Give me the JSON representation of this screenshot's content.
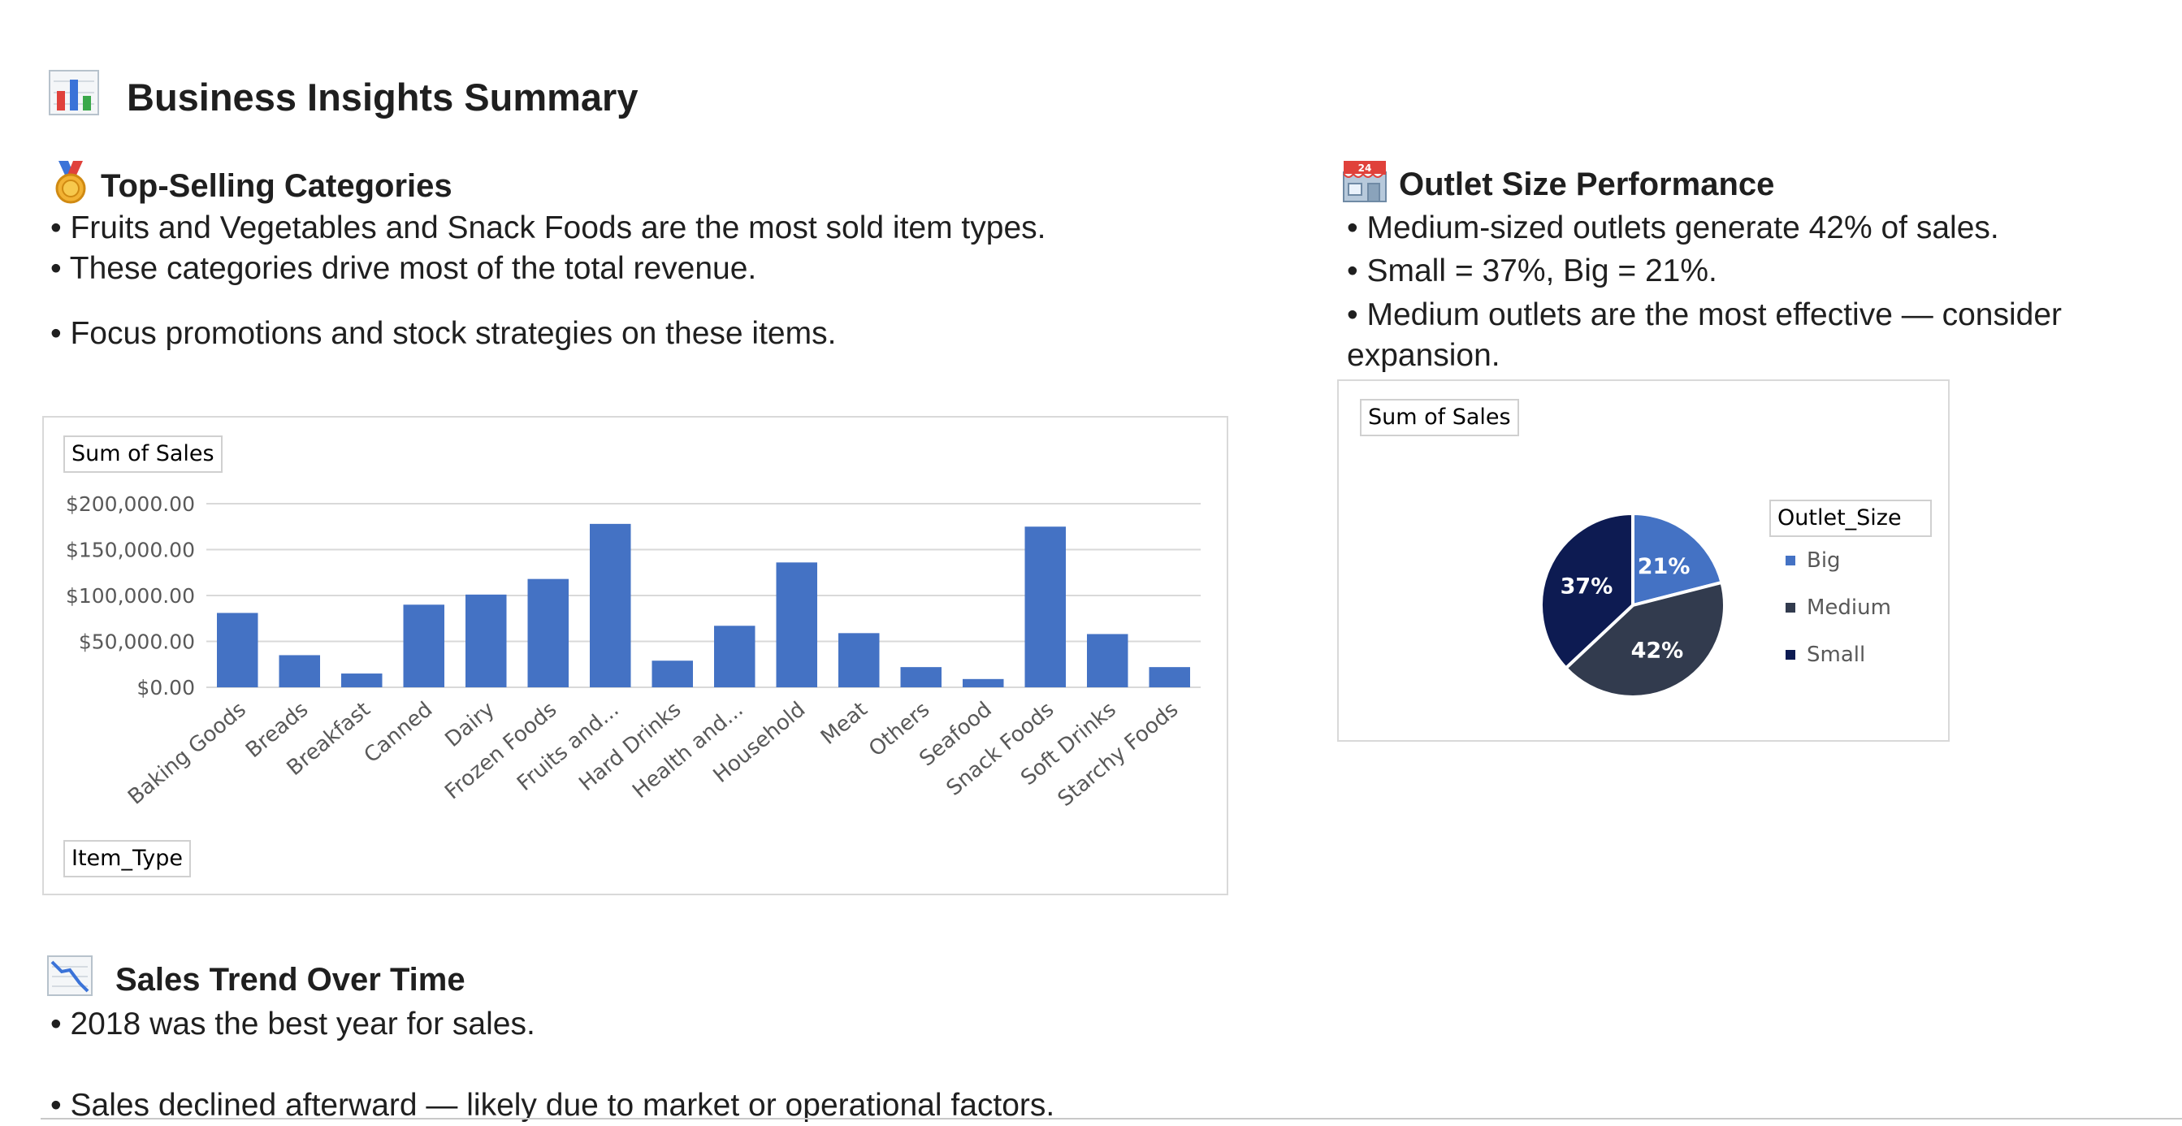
{
  "page": {
    "title": "Business Insights Summary",
    "title_icon": "bar-chart-icon"
  },
  "top_selling": {
    "heading": "Top-Selling Categories",
    "heading_icon": "medal-icon",
    "bullets": [
      "• Fruits and Vegetables and Snack Foods are the most sold item types.",
      "• These categories drive most of the total revenue.",
      "• Focus promotions and stock strategies on these items."
    ]
  },
  "outlet_size": {
    "heading": "Outlet Size Performance",
    "heading_icon": "store-icon",
    "bullets": [
      "• Medium-sized outlets generate 42% of sales.",
      "• Small = 37%, Big = 21%.",
      "• Medium outlets are the most effective — consider expansion."
    ]
  },
  "sales_trend": {
    "heading": "Sales Trend Over Time",
    "heading_icon": "chart-decreasing-icon",
    "bullets": [
      "• 2018 was the best year for sales.",
      "• Sales declined afterward — likely due to market or operational factors."
    ]
  },
  "colors": {
    "bar": "#4472c4",
    "big": "#4472c4",
    "medium": "#323b4e",
    "small": "#0d1b52",
    "grid": "#d9d9d9",
    "axis_text": "#595959"
  },
  "chart_data": [
    {
      "type": "bar",
      "value_field": "Sum of Sales",
      "axis_field": "Item_Type",
      "categories": [
        "Baking Goods",
        "Breads",
        "Breakfast",
        "Canned",
        "Dairy",
        "Frozen Foods",
        "Fruits and...",
        "Hard Drinks",
        "Health and...",
        "Household",
        "Meat",
        "Others",
        "Seafood",
        "Snack Foods",
        "Soft Drinks",
        "Starchy Foods"
      ],
      "values": [
        81000,
        35000,
        15000,
        90000,
        101000,
        118000,
        178000,
        29000,
        67000,
        136000,
        59000,
        22000,
        9000,
        175000,
        58000,
        22000
      ],
      "ylim": [
        0,
        200000
      ],
      "yticks": [
        0,
        50000,
        100000,
        150000,
        200000
      ],
      "ytick_labels": [
        "$0.00",
        "$50,000.00",
        "$100,000.00",
        "$150,000.00",
        "$200,000.00"
      ],
      "grid": true,
      "legend": "none"
    },
    {
      "type": "pie",
      "value_field": "Sum of Sales",
      "legend_title": "Outlet_Size",
      "labels": [
        "Big",
        "Medium",
        "Small"
      ],
      "values": [
        21,
        42,
        37
      ],
      "data_labels": [
        "21%",
        "42%",
        "37%"
      ],
      "legend": "right"
    }
  ]
}
